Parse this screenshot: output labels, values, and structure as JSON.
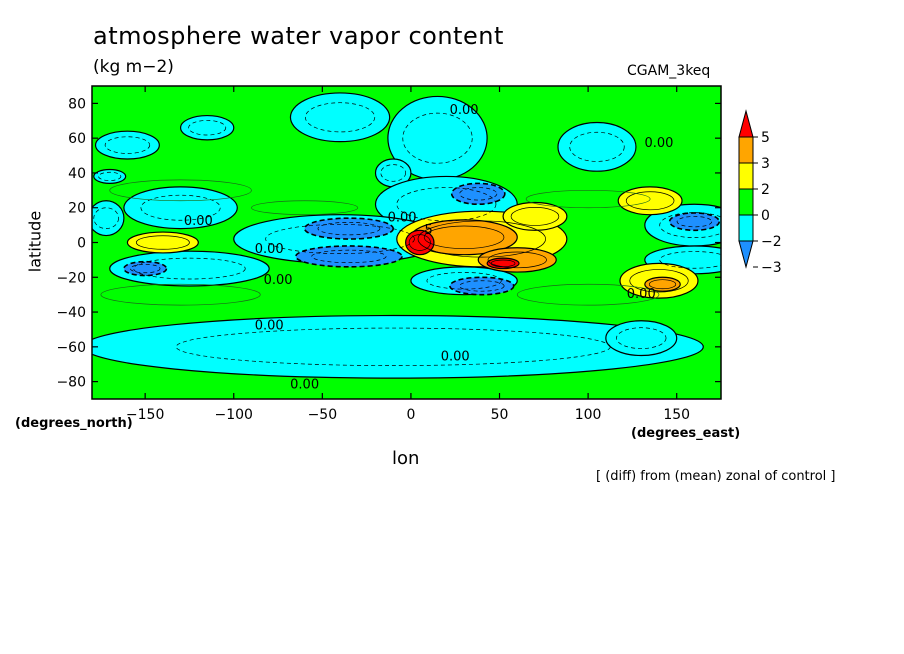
{
  "chart_data": {
    "type": "heatmap",
    "title": "atmosphere water vapor content",
    "subtitle": "(kg m−2)",
    "model_label": "CGAM_3keq",
    "xlabel": "lon",
    "ylabel": "latitude",
    "x_units": "(degrees_east)",
    "y_units": "(degrees_north)",
    "note": "[ (diff) from (mean) zonal of control ]",
    "xlim": [
      -180,
      175
    ],
    "ylim": [
      -90,
      90
    ],
    "x_ticks": [
      -150,
      -100,
      -50,
      0,
      50,
      100,
      150
    ],
    "y_ticks": [
      -80,
      -60,
      -40,
      -20,
      0,
      20,
      40,
      60,
      80
    ],
    "x_tick_labels": [
      "−150",
      "−100",
      "−50",
      "0",
      "50",
      "100",
      "150"
    ],
    "y_tick_labels": [
      "−80",
      "−60",
      "−40",
      "−20",
      "0",
      "20",
      "40",
      "60",
      "80"
    ],
    "colorbar": {
      "levels": [
        -3,
        -2,
        0,
        2,
        3,
        5
      ],
      "labels": [
        "5",
        "3",
        "2",
        "0",
        "−2",
        "−3"
      ],
      "colors": [
        "#1e90ff",
        "#00ffff",
        "#00ff00",
        "#ffff00",
        "#ffa500",
        "#ff0000"
      ]
    },
    "background_color": "#00ff00",
    "contour_label": "0.00",
    "contour_label_small": "5",
    "contour_label_positions": [
      [
        30,
        74
      ],
      [
        -120,
        10
      ],
      [
        -80,
        -6
      ],
      [
        -75,
        -24
      ],
      [
        -80,
        -50
      ],
      [
        -60,
        -84
      ],
      [
        25,
        -68
      ],
      [
        140,
        55
      ],
      [
        130,
        -32
      ],
      [
        -5,
        12
      ],
      [
        10,
        5
      ]
    ],
    "regions": [
      {
        "level": -2,
        "lon": -160,
        "lat": 56,
        "rlon": 18,
        "rlat": 8
      },
      {
        "level": -2,
        "lon": -115,
        "lat": 66,
        "rlon": 15,
        "rlat": 7
      },
      {
        "level": -2,
        "lon": -40,
        "lat": 72,
        "rlon": 28,
        "rlat": 14
      },
      {
        "level": -2,
        "lon": 15,
        "lat": 60,
        "rlon": 28,
        "rlat": 24
      },
      {
        "level": -2,
        "lon": 105,
        "lat": 55,
        "rlon": 22,
        "rlat": 14
      },
      {
        "level": -2,
        "lon": -10,
        "lat": 40,
        "rlon": 10,
        "rlat": 8
      },
      {
        "level": -2,
        "lon": -170,
        "lat": 38,
        "rlon": 9,
        "rlat": 4
      },
      {
        "level": -2,
        "lon": -130,
        "lat": 20,
        "rlon": 32,
        "rlat": 12
      },
      {
        "level": -2,
        "lon": 20,
        "lat": 22,
        "rlon": 40,
        "rlat": 16
      },
      {
        "level": -2,
        "lon": -40,
        "lat": 2,
        "rlon": 60,
        "rlat": 14
      },
      {
        "level": -2,
        "lon": -125,
        "lat": -15,
        "rlon": 45,
        "rlat": 10
      },
      {
        "level": -2,
        "lon": 30,
        "lat": -22,
        "rlon": 30,
        "rlat": 8
      },
      {
        "level": -2,
        "lon": 160,
        "lat": 10,
        "rlon": 28,
        "rlat": 12
      },
      {
        "level": -2,
        "lon": 160,
        "lat": -10,
        "rlon": 28,
        "rlat": 8
      },
      {
        "level": -2,
        "lon": -10,
        "lat": -60,
        "rlon": 175,
        "rlat": 18
      },
      {
        "level": -2,
        "lon": 130,
        "lat": -55,
        "rlon": 20,
        "rlat": 10
      },
      {
        "level": -2,
        "lon": -172,
        "lat": 14,
        "rlon": 10,
        "rlat": 10
      },
      {
        "level": -3,
        "lon": -150,
        "lat": -15,
        "rlon": 12,
        "rlat": 4
      },
      {
        "level": -3,
        "lon": -35,
        "lat": 8,
        "rlon": 25,
        "rlat": 6
      },
      {
        "level": -3,
        "lon": -35,
        "lat": -8,
        "rlon": 30,
        "rlat": 6
      },
      {
        "level": -3,
        "lon": 38,
        "lat": 28,
        "rlon": 15,
        "rlat": 6
      },
      {
        "level": -3,
        "lon": 40,
        "lat": -25,
        "rlon": 18,
        "rlat": 5
      },
      {
        "level": -3,
        "lon": 160,
        "lat": 12,
        "rlon": 14,
        "rlat": 5
      },
      {
        "level": 2,
        "lon": -140,
        "lat": 0,
        "rlon": 20,
        "rlat": 6
      },
      {
        "level": 2,
        "lon": 40,
        "lat": 2,
        "rlon": 48,
        "rlat": 16
      },
      {
        "level": 2,
        "lon": 70,
        "lat": 15,
        "rlon": 18,
        "rlat": 8
      },
      {
        "level": 2,
        "lon": 135,
        "lat": 24,
        "rlon": 18,
        "rlat": 8
      },
      {
        "level": 2,
        "lon": 140,
        "lat": -22,
        "rlon": 22,
        "rlat": 10
      },
      {
        "level": 3,
        "lon": 30,
        "lat": 3,
        "rlon": 30,
        "rlat": 10
      },
      {
        "level": 3,
        "lon": 60,
        "lat": -10,
        "rlon": 22,
        "rlat": 7
      },
      {
        "level": 3,
        "lon": 142,
        "lat": -24,
        "rlon": 10,
        "rlat": 4
      },
      {
        "level": 5,
        "lon": 5,
        "lat": 0,
        "rlon": 8,
        "rlat": 7
      },
      {
        "level": 5,
        "lon": 52,
        "lat": -12,
        "rlon": 9,
        "rlat": 3
      }
    ]
  }
}
